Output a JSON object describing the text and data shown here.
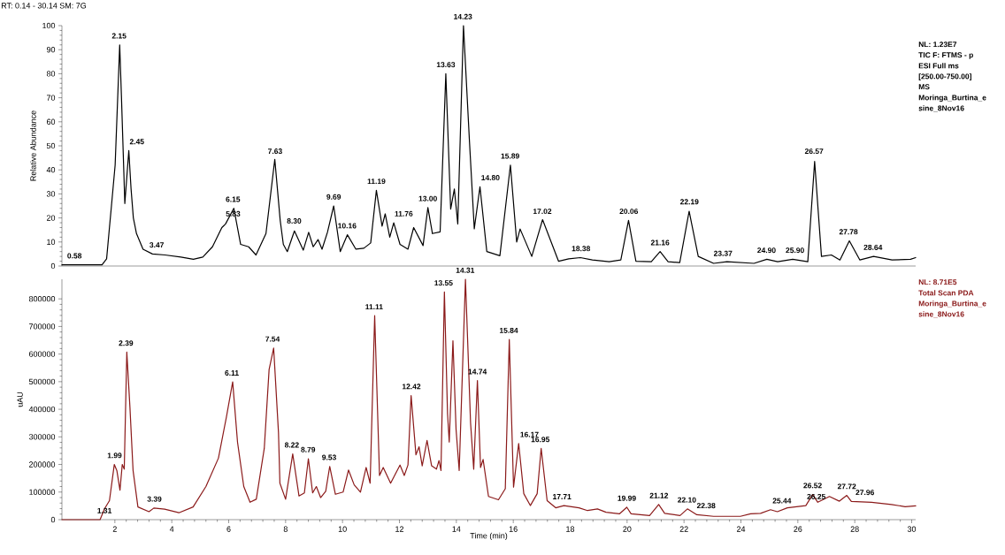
{
  "chart_data": [
    {
      "type": "line",
      "title": "RT: 0.14 - 30.14   SM: 7G",
      "ylabel": "Relative Abundance",
      "color": "#000000",
      "tick_labels": "y",
      "xlim": [
        0.14,
        30.14
      ],
      "ylim": [
        0,
        100
      ],
      "yticks": [
        0,
        10,
        20,
        30,
        40,
        50,
        60,
        70,
        80,
        90,
        100
      ],
      "x": [
        0.14,
        1.55,
        1.71,
        1.81,
        1.88,
        2.01,
        2.17,
        2.23,
        2.35,
        2.49,
        2.57,
        2.65,
        2.76,
        2.99,
        3.32,
        3.76,
        4.32,
        4.76,
        5.09,
        5.43,
        5.76,
        5.89,
        6.18,
        6.42,
        6.7,
        6.96,
        7.31,
        7.62,
        7.81,
        7.92,
        8.06,
        8.31,
        8.62,
        8.81,
        8.97,
        9.14,
        9.28,
        9.47,
        9.69,
        9.92,
        10.17,
        10.47,
        10.75,
        10.99,
        11.19,
        11.39,
        11.5,
        11.66,
        11.8,
        12.02,
        12.3,
        12.5,
        12.83,
        13.0,
        13.16,
        13.43,
        13.63,
        13.8,
        13.93,
        14.05,
        14.25,
        14.46,
        14.63,
        14.83,
        15.07,
        15.53,
        15.9,
        16.12,
        16.24,
        16.65,
        17.03,
        17.59,
        17.95,
        18.36,
        18.78,
        19.37,
        19.78,
        20.05,
        20.31,
        20.85,
        21.16,
        21.44,
        21.85,
        22.18,
        22.5,
        23.04,
        23.51,
        24.46,
        24.91,
        25.29,
        25.82,
        26.35,
        26.59,
        26.83,
        27.18,
        27.48,
        27.81,
        28.18,
        28.66,
        29.31,
        29.96,
        30.14
      ],
      "values": [
        0.5,
        0.5,
        3,
        16,
        25,
        42,
        92,
        71,
        26,
        48,
        32,
        20,
        13.5,
        7,
        5,
        4.6,
        3.7,
        2.8,
        3.7,
        8,
        16,
        17.5,
        24,
        9,
        8,
        4.6,
        13.5,
        44.4,
        19,
        9,
        6,
        14.6,
        6.6,
        14,
        8,
        11,
        7,
        14,
        25,
        6,
        13,
        7,
        7.4,
        9.6,
        31.5,
        16.6,
        21.7,
        12,
        18,
        9,
        7,
        16,
        8.5,
        24.3,
        13.5,
        14.2,
        80,
        23.7,
        32,
        17.5,
        100,
        52,
        15.5,
        33,
        6,
        4.3,
        42,
        10,
        15.4,
        4,
        19.3,
        2,
        3,
        3.5,
        2.5,
        1.8,
        2.5,
        19,
        2,
        1.8,
        6,
        1.8,
        1.4,
        22.8,
        4,
        1.1,
        1.8,
        1.1,
        2.8,
        1.8,
        2.8,
        1.8,
        43.5,
        4,
        4.6,
        2.5,
        10.5,
        2.5,
        4,
        2.5,
        2.8,
        3.5
      ],
      "annotations": [
        {
          "text": "0.58",
          "x": 0.58,
          "y": 0.5
        },
        {
          "text": "2.15",
          "x": 2.15,
          "y": 92
        },
        {
          "text": "2.45",
          "x": 2.45,
          "y": 48
        },
        {
          "text": "3.47",
          "x": 3.47,
          "y": 5
        },
        {
          "text": "5.83",
          "x": 5.83,
          "y": 18
        },
        {
          "text": "6.15",
          "x": 6.15,
          "y": 24
        },
        {
          "text": "7.63",
          "x": 7.63,
          "y": 44
        },
        {
          "text": "8.30",
          "x": 8.3,
          "y": 15
        },
        {
          "text": "9.69",
          "x": 9.69,
          "y": 25
        },
        {
          "text": "10.16",
          "x": 10.16,
          "y": 13
        },
        {
          "text": "11.19",
          "x": 11.19,
          "y": 31.5
        },
        {
          "text": "11.76",
          "x": 11.76,
          "y": 18
        },
        {
          "text": "13.00",
          "x": 13.0,
          "y": 24.3
        },
        {
          "text": "13.63",
          "x": 13.63,
          "y": 80
        },
        {
          "text": "14.23",
          "x": 14.23,
          "y": 100
        },
        {
          "text": "14.80",
          "x": 14.8,
          "y": 33
        },
        {
          "text": "15.89",
          "x": 15.89,
          "y": 42
        },
        {
          "text": "17.02",
          "x": 17.02,
          "y": 19
        },
        {
          "text": "18.38",
          "x": 18.38,
          "y": 3.5
        },
        {
          "text": "20.06",
          "x": 20.06,
          "y": 19
        },
        {
          "text": "21.16",
          "x": 21.16,
          "y": 6
        },
        {
          "text": "22.19",
          "x": 22.19,
          "y": 23
        },
        {
          "text": "23.37",
          "x": 23.37,
          "y": 1.5
        },
        {
          "text": "24.90",
          "x": 24.9,
          "y": 2.8
        },
        {
          "text": "25.90",
          "x": 25.9,
          "y": 2.8
        },
        {
          "text": "26.57",
          "x": 26.57,
          "y": 44
        },
        {
          "text": "27.78",
          "x": 27.78,
          "y": 10.5
        },
        {
          "text": "28.64",
          "x": 28.64,
          "y": 4
        },
        "NL: 1.23E7",
        "TIC F: FTMS - p",
        "ESI Full ms",
        "[250.00-750.00]",
        "MS",
        "Moringa_Burtina_e",
        "sine_8Nov16"
      ]
    },
    {
      "type": "line",
      "xlabel": "Time (min)",
      "ylabel": "uAU",
      "color": "#8b1a1a",
      "xlim": [
        0.14,
        30.14
      ],
      "ylim": [
        0,
        871000
      ],
      "xticks": [
        2,
        4,
        6,
        8,
        10,
        12,
        14,
        16,
        18,
        20,
        22,
        24,
        26,
        28,
        30
      ],
      "yticks": [
        0,
        100000,
        200000,
        300000,
        400000,
        500000,
        600000,
        700000,
        800000
      ],
      "x": [
        0.14,
        1.48,
        1.64,
        1.81,
        1.98,
        2.07,
        2.18,
        2.26,
        2.33,
        2.42,
        2.53,
        2.64,
        2.81,
        3.2,
        3.37,
        3.75,
        4.25,
        4.75,
        5.2,
        5.64,
        5.92,
        6.14,
        6.31,
        6.53,
        6.75,
        6.97,
        7.25,
        7.42,
        7.58,
        7.75,
        7.8,
        8.0,
        8.25,
        8.47,
        8.66,
        8.8,
        8.95,
        9.08,
        9.23,
        9.41,
        9.55,
        9.75,
        10.02,
        10.21,
        10.41,
        10.63,
        10.83,
        10.97,
        11.13,
        11.3,
        11.43,
        11.69,
        12.02,
        12.17,
        12.3,
        12.41,
        12.58,
        12.69,
        12.8,
        12.97,
        13.13,
        13.3,
        13.39,
        13.46,
        13.58,
        13.69,
        13.75,
        13.88,
        13.99,
        14.1,
        14.32,
        14.5,
        14.61,
        14.74,
        14.85,
        14.94,
        15.13,
        15.48,
        15.72,
        15.86,
        16.01,
        16.19,
        16.37,
        16.6,
        16.84,
        16.98,
        17.19,
        17.49,
        17.78,
        18.31,
        18.61,
        18.96,
        19.26,
        19.73,
        19.99,
        20.14,
        20.79,
        21.11,
        21.32,
        21.86,
        22.12,
        22.45,
        23.04,
        23.98,
        24.34,
        24.69,
        25.04,
        25.28,
        25.63,
        26.28,
        26.52,
        26.7,
        27.11,
        27.46,
        27.72,
        27.88,
        28.59,
        29.29,
        29.77,
        30.14
      ],
      "values": [
        0,
        0,
        40000,
        69000,
        200000,
        178000,
        107000,
        200000,
        183000,
        607000,
        407000,
        178000,
        46000,
        29000,
        42000,
        38000,
        25000,
        46000,
        120000,
        223000,
        372000,
        499000,
        281000,
        120000,
        63000,
        74000,
        258000,
        544000,
        622000,
        315000,
        132000,
        74000,
        238000,
        86000,
        97000,
        221000,
        97000,
        120000,
        80000,
        103000,
        193000,
        92000,
        100000,
        180000,
        126000,
        100000,
        189000,
        132000,
        739000,
        160000,
        189000,
        132000,
        198000,
        160000,
        198000,
        450000,
        235000,
        264000,
        195000,
        287000,
        195000,
        183000,
        214000,
        178000,
        825000,
        384000,
        281000,
        648000,
        327000,
        178000,
        871000,
        350000,
        183000,
        504000,
        189000,
        218000,
        84000,
        72000,
        112000,
        653000,
        118000,
        276000,
        94000,
        51000,
        94000,
        258000,
        69000,
        43000,
        51000,
        43000,
        33000,
        39000,
        27000,
        21000,
        45000,
        21000,
        15000,
        55000,
        23000,
        15000,
        39000,
        18000,
        12000,
        12000,
        21000,
        23000,
        36000,
        29000,
        43000,
        51000,
        91000,
        63000,
        84000,
        67000,
        88000,
        66000,
        63000,
        55000,
        47000,
        50000
      ],
      "annotations": [
        {
          "text": "1.31",
          "x": 1.31,
          "y": 0
        },
        {
          "text": "1.99",
          "x": 1.99,
          "y": 200000
        },
        {
          "text": "2.39",
          "x": 2.39,
          "y": 607000
        },
        {
          "text": "3.39",
          "x": 3.39,
          "y": 42000
        },
        {
          "text": "6.11",
          "x": 6.11,
          "y": 499000
        },
        {
          "text": "7.54",
          "x": 7.54,
          "y": 622000
        },
        {
          "text": "8.22",
          "x": 8.22,
          "y": 238000
        },
        {
          "text": "8.79",
          "x": 8.79,
          "y": 221000
        },
        {
          "text": "9.53",
          "x": 9.53,
          "y": 193000
        },
        {
          "text": "11.11",
          "x": 11.11,
          "y": 739000
        },
        {
          "text": "12.42",
          "x": 12.42,
          "y": 450000
        },
        {
          "text": "13.55",
          "x": 13.55,
          "y": 825000
        },
        {
          "text": "14.31",
          "x": 14.31,
          "y": 871000
        },
        {
          "text": "14.74",
          "x": 14.74,
          "y": 504000
        },
        {
          "text": "15.84",
          "x": 15.84,
          "y": 653000
        },
        {
          "text": "16.17",
          "x": 16.17,
          "y": 276000
        },
        {
          "text": "16.95",
          "x": 16.95,
          "y": 258000
        },
        {
          "text": "17.71",
          "x": 17.71,
          "y": 51000
        },
        {
          "text": "19.99",
          "x": 19.99,
          "y": 45000
        },
        {
          "text": "21.12",
          "x": 21.12,
          "y": 55000
        },
        {
          "text": "22.10",
          "x": 22.1,
          "y": 39000
        },
        {
          "text": "22.38",
          "x": 22.38,
          "y": 18000
        },
        {
          "text": "25.44",
          "x": 25.44,
          "y": 36000
        },
        {
          "text": "26.25",
          "x": 26.25,
          "y": 51000
        },
        {
          "text": "26.52",
          "x": 26.52,
          "y": 91000
        },
        {
          "text": "27.72",
          "x": 27.72,
          "y": 88000
        },
        {
          "text": "27.96",
          "x": 27.96,
          "y": 66000
        },
        "NL: 8.71E5",
        "Total Scan PDA",
        "Moringa_Burtina_e",
        "sine_8Nov16"
      ]
    }
  ]
}
